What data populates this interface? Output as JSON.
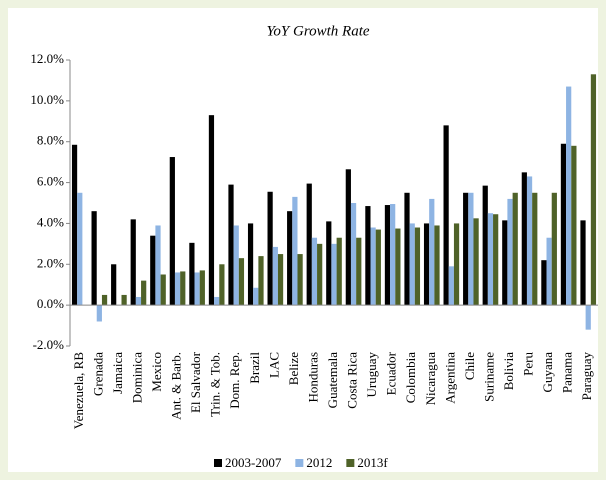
{
  "chart_data": {
    "type": "bar",
    "title": "YoY Growth Rate",
    "categories": [
      "Venezuela, RB",
      "Grenada",
      "Jamaica",
      "Dominica",
      "Mexico",
      "Ant. & Barb.",
      "El Salvador",
      "Trin. & Tob.",
      "Dom. Rep.",
      "Brazil",
      "LAC",
      "Belize",
      "Honduras",
      "Guatemala",
      "Costa Rica",
      "Uruguay",
      "Ecuador",
      "Colombia",
      "Nicaragua",
      "Argentina",
      "Chile",
      "Suriname",
      "Bolivia",
      "Peru",
      "Guyana",
      "Panama",
      "Paraguay"
    ],
    "series": [
      {
        "name": "2003-2007",
        "color": "#000000",
        "values": [
          7.85,
          4.6,
          2.0,
          4.2,
          3.4,
          7.25,
          3.05,
          9.3,
          5.9,
          4.0,
          5.55,
          4.6,
          5.95,
          4.1,
          6.65,
          4.85,
          4.9,
          5.5,
          4.0,
          8.8,
          5.5,
          5.85,
          4.15,
          6.5,
          2.2,
          7.9,
          4.15
        ]
      },
      {
        "name": "2012",
        "color": "#8eb4e3",
        "values": [
          5.5,
          -0.8,
          null,
          0.4,
          3.9,
          1.6,
          1.6,
          0.4,
          3.9,
          0.85,
          2.85,
          5.3,
          3.3,
          3.0,
          5.0,
          3.8,
          4.95,
          4.0,
          5.2,
          1.9,
          5.5,
          4.5,
          5.2,
          6.3,
          3.3,
          10.7,
          -1.2
        ]
      },
      {
        "name": "2013f",
        "color": "#4f6228",
        "values": [
          null,
          0.5,
          0.5,
          1.2,
          1.5,
          1.65,
          1.7,
          2.0,
          2.3,
          2.4,
          2.5,
          2.5,
          3.0,
          3.3,
          3.3,
          3.7,
          3.75,
          3.8,
          3.9,
          4.0,
          4.25,
          4.45,
          5.5,
          5.5,
          5.5,
          7.8,
          11.3
        ]
      }
    ],
    "ylim": [
      -2,
      12
    ],
    "yticks": [
      {
        "value": -2,
        "label": "-2.0%"
      },
      {
        "value": 0,
        "label": "0.0%"
      },
      {
        "value": 2,
        "label": "2.0%"
      },
      {
        "value": 4,
        "label": "4.0%"
      },
      {
        "value": 6,
        "label": "6.0%"
      },
      {
        "value": 8,
        "label": "8.0%"
      },
      {
        "value": 10,
        "label": "10.0%"
      },
      {
        "value": 12,
        "label": "12.0%"
      }
    ],
    "grid": false,
    "legend": "bottom"
  }
}
